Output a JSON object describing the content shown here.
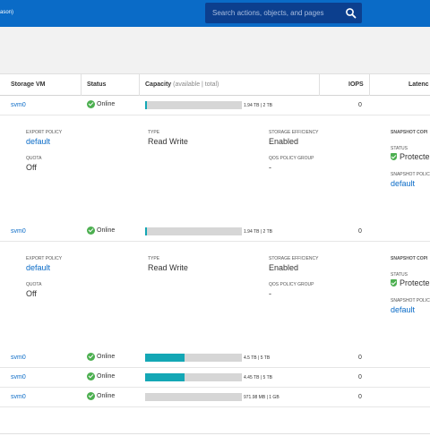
{
  "header": {
    "breadcrumb": "ason)",
    "search_placeholder": "Search actions, objects, and pages",
    "search_icon": "search-icon"
  },
  "table": {
    "columns": {
      "storage_vm": "Storage VM",
      "status": "Status",
      "capacity": "Capacity",
      "capacity_sub": "(available | total)",
      "iops": "IOPS",
      "latency": "Latenc"
    },
    "rows": [
      {
        "svm": "svm0",
        "status": "Online",
        "fill": 0.02,
        "used": "1.94 TB",
        "total": "2 TB",
        "iops": "0"
      },
      {
        "svm": "svm0",
        "status": "Online",
        "fill": 0.02,
        "used": "1.94 TB",
        "total": "2 TB",
        "iops": "0"
      },
      {
        "svm": "svm0",
        "status": "Online",
        "fill": 0.41,
        "used": "4.5 TB",
        "total": "5 TB",
        "iops": "0"
      },
      {
        "svm": "svm0",
        "status": "Online",
        "fill": 0.41,
        "used": "4.45 TB",
        "total": "5 TB",
        "iops": "0"
      },
      {
        "svm": "svm0",
        "status": "Online",
        "fill": 0.0,
        "used": "971.98 MB",
        "total": "1 GB",
        "iops": "0"
      }
    ],
    "details": [
      {
        "export_policy_label": "EXPORT POLICY",
        "export_policy": "default",
        "quota_label": "QUOTA",
        "quota": "Off",
        "type_label": "TYPE",
        "type": "Read Write",
        "storage_efficiency_label": "STORAGE EFFICIENCY",
        "storage_efficiency": "Enabled",
        "qos_label": "QOS POLICY GROUP",
        "qos": "-",
        "snapshot_copies_label": "SNAPSHOT COPI",
        "status_label": "STATUS",
        "snapshot_status": "Protecte",
        "snapshot_policy_label": "SNAPSHOT POLIC",
        "snapshot_policy": "default"
      },
      {
        "export_policy_label": "EXPORT POLICY",
        "export_policy": "default",
        "quota_label": "QUOTA",
        "quota": "Off",
        "type_label": "TYPE",
        "type": "Read Write",
        "storage_efficiency_label": "STORAGE EFFICIENCY",
        "storage_efficiency": "Enabled",
        "qos_label": "QOS POLICY GROUP",
        "qos": "-",
        "snapshot_copies_label": "SNAPSHOT COPI",
        "status_label": "STATUS",
        "snapshot_status": "Protecte",
        "snapshot_policy_label": "SNAPSHOT POLIC",
        "snapshot_policy": "default"
      }
    ]
  },
  "colors": {
    "header": "#0a6bc7",
    "search": "#0c3f8e",
    "capacity_fill": "#14a7b5",
    "online": "#4caf50",
    "link": "#0a6bc7"
  }
}
